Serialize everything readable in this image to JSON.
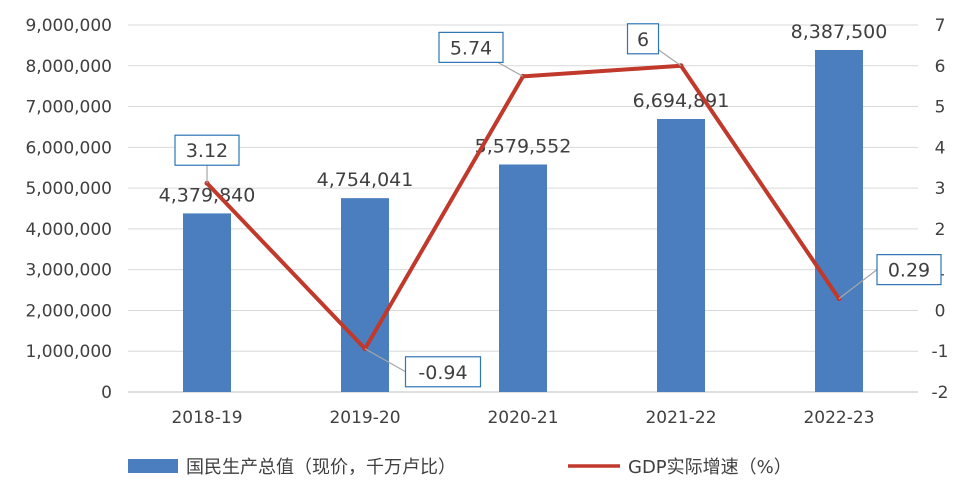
{
  "chart_data": {
    "type": "bar",
    "categories": [
      "2018-19",
      "2019-20",
      "2020-21",
      "2021-22",
      "2022-23"
    ],
    "series": [
      {
        "name": "国民生产总值（现价，千万卢比）",
        "type": "bar",
        "axis": "left",
        "values": [
          4379840,
          4754041,
          5579552,
          6694891,
          8387500
        ],
        "labels": [
          "4,379,840",
          "4,754,041",
          "5,579,552",
          "6,694,891",
          "8,387,500"
        ],
        "color": "#4a7ebf"
      },
      {
        "name": "GDP实际增速（%）",
        "type": "line",
        "axis": "right",
        "values": [
          3.12,
          -0.94,
          5.74,
          6,
          0.29
        ],
        "labels": [
          "3.12",
          "-0.94",
          "5.74",
          "6",
          "0.29"
        ],
        "color": "#c0392b"
      }
    ],
    "left_axis": {
      "ylim": [
        0,
        9000000
      ],
      "ticks": [
        0,
        1000000,
        2000000,
        3000000,
        4000000,
        5000000,
        6000000,
        7000000,
        8000000,
        9000000
      ],
      "tick_labels": [
        "0",
        "1,000,000",
        "2,000,000",
        "3,000,000",
        "4,000,000",
        "5,000,000",
        "6,000,000",
        "7,000,000",
        "8,000,000",
        "9,000,000"
      ]
    },
    "right_axis": {
      "ylim": [
        -2,
        7
      ],
      "ticks": [
        -2,
        -1,
        0,
        1,
        2,
        3,
        4,
        5,
        6,
        7
      ],
      "tick_labels": [
        "-2",
        "-1",
        "0",
        "1",
        "2",
        "3",
        "4",
        "5",
        "6",
        "7"
      ]
    },
    "grid": "horizontal",
    "legend": "bottom-center"
  }
}
